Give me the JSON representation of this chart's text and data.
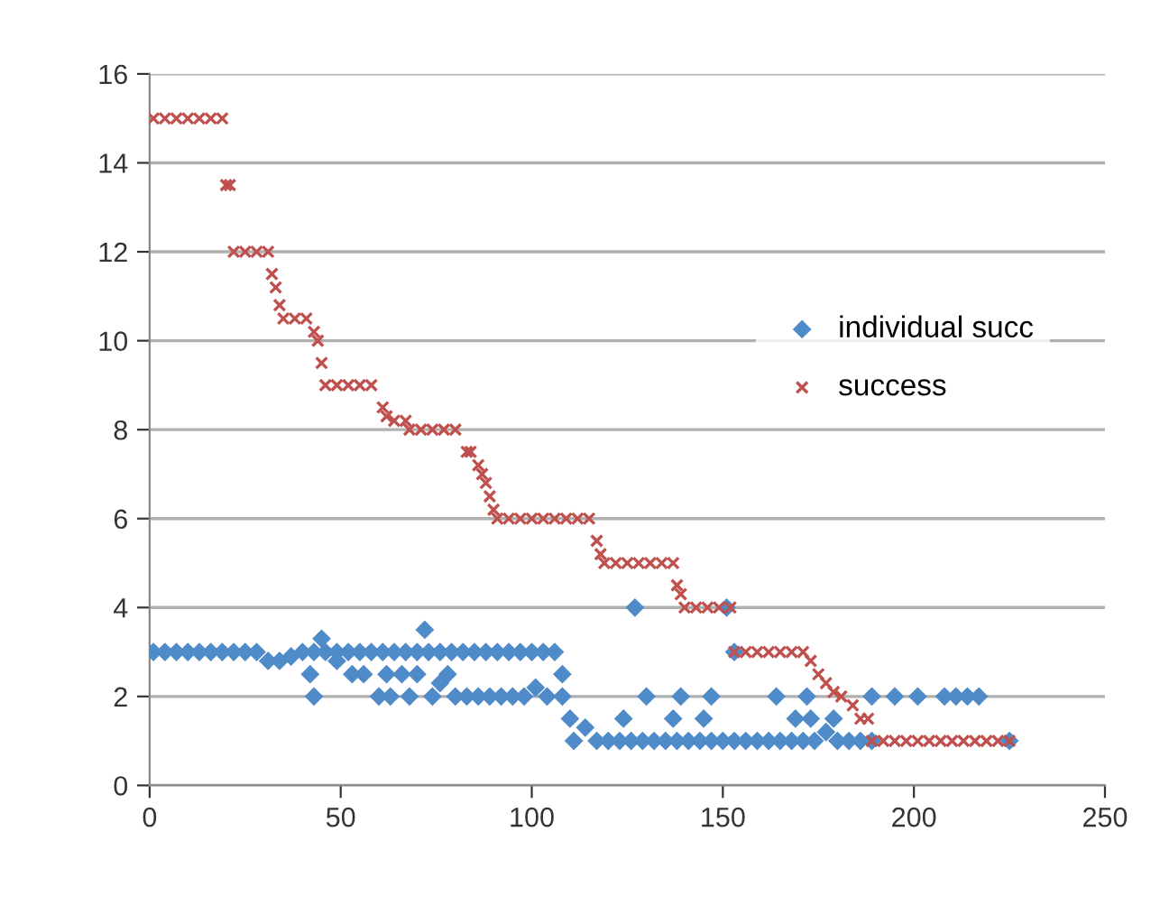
{
  "chart_data": {
    "type": "scatter",
    "xlim": [
      0,
      250
    ],
    "xticks": [
      0,
      50,
      100,
      150,
      200,
      250
    ],
    "ylim": [
      0,
      16
    ],
    "yticks": [
      0,
      2,
      4,
      6,
      8,
      10,
      12,
      14,
      16
    ],
    "grid": "y",
    "legend": "right",
    "series": [
      {
        "name": "individual succ",
        "color": "#4f8ac9",
        "marker": "diamond",
        "x": [
          1,
          4,
          7,
          10,
          13,
          16,
          19,
          22,
          25,
          28,
          31,
          34,
          37,
          40,
          43,
          46,
          49,
          52,
          55,
          58,
          61,
          64,
          67,
          70,
          73,
          76,
          79,
          82,
          85,
          88,
          91,
          94,
          97,
          100,
          103,
          106,
          42,
          43,
          45,
          49,
          53,
          56,
          60,
          62,
          63,
          66,
          68,
          70,
          72,
          74,
          76,
          78,
          80,
          83,
          86,
          89,
          92,
          95,
          98,
          101,
          104,
          108,
          108,
          110,
          111,
          114,
          117,
          120,
          123,
          126,
          129,
          132,
          135,
          138,
          141,
          144,
          147,
          150,
          153,
          156,
          159,
          162,
          165,
          168,
          171,
          174,
          177,
          180,
          183,
          186,
          189,
          127,
          151,
          153,
          124,
          130,
          137,
          139,
          145,
          147,
          164,
          169,
          172,
          173,
          179,
          189,
          195,
          201,
          208,
          211,
          214,
          217,
          225
        ],
        "values": [
          3,
          3,
          3,
          3,
          3,
          3,
          3,
          3,
          3,
          3,
          2.8,
          2.8,
          2.9,
          3,
          3,
          3,
          3,
          3,
          3,
          3,
          3,
          3,
          3,
          3,
          3,
          3,
          3,
          3,
          3,
          3,
          3,
          3,
          3,
          3,
          3,
          3,
          2.5,
          2,
          3.3,
          2.8,
          2.5,
          2.5,
          2,
          2.5,
          2,
          2.5,
          2,
          2.5,
          3.5,
          2,
          2.3,
          2.5,
          2,
          2,
          2,
          2,
          2,
          2,
          2,
          2.2,
          2,
          2.5,
          2,
          1.5,
          1,
          1.3,
          1,
          1,
          1,
          1,
          1,
          1,
          1,
          1,
          1,
          1,
          1,
          1,
          1,
          1,
          1,
          1,
          1,
          1,
          1,
          1,
          1.2,
          1,
          1,
          1,
          1,
          4,
          4,
          3,
          1.5,
          2,
          1.5,
          2,
          1.5,
          2,
          2,
          1.5,
          2,
          1.5,
          1.5,
          2,
          2,
          2,
          2,
          2,
          2,
          2,
          1
        ]
      },
      {
        "name": "success",
        "color": "#c0504d",
        "marker": "cross",
        "x": [
          1,
          4,
          7,
          10,
          13,
          16,
          19,
          20,
          21,
          22,
          25,
          28,
          31,
          32,
          33,
          34,
          35,
          38,
          41,
          43,
          44,
          45,
          46,
          49,
          52,
          55,
          58,
          61,
          62,
          64,
          67,
          68,
          71,
          74,
          77,
          80,
          83,
          84,
          86,
          87,
          88,
          89,
          90,
          91,
          94,
          97,
          100,
          103,
          106,
          109,
          112,
          115,
          117,
          118,
          119,
          122,
          125,
          128,
          131,
          134,
          137,
          138,
          139,
          140,
          143,
          146,
          149,
          152,
          153,
          156,
          159,
          162,
          165,
          168,
          171,
          173,
          175,
          177,
          179,
          181,
          184,
          186,
          188,
          189,
          192,
          195,
          198,
          201,
          204,
          207,
          210,
          213,
          216,
          219,
          222,
          225
        ],
        "values": [
          15,
          15,
          15,
          15,
          15,
          15,
          15,
          13.5,
          13.5,
          12,
          12,
          12,
          12,
          11.5,
          11.2,
          10.8,
          10.5,
          10.5,
          10.5,
          10.2,
          10,
          9.5,
          9,
          9,
          9,
          9,
          9,
          8.5,
          8.3,
          8.2,
          8.2,
          8,
          8,
          8,
          8,
          8,
          7.5,
          7.5,
          7.2,
          7,
          6.8,
          6.5,
          6.2,
          6,
          6,
          6,
          6,
          6,
          6,
          6,
          6,
          6,
          5.5,
          5.2,
          5,
          5,
          5,
          5,
          5,
          5,
          5,
          4.5,
          4.3,
          4,
          4,
          4,
          4,
          4,
          3,
          3,
          3,
          3,
          3,
          3,
          3,
          2.8,
          2.5,
          2.3,
          2.1,
          2,
          1.8,
          1.5,
          1.5,
          1,
          1,
          1,
          1,
          1,
          1,
          1,
          1,
          1,
          1,
          1,
          1,
          1
        ]
      }
    ]
  }
}
